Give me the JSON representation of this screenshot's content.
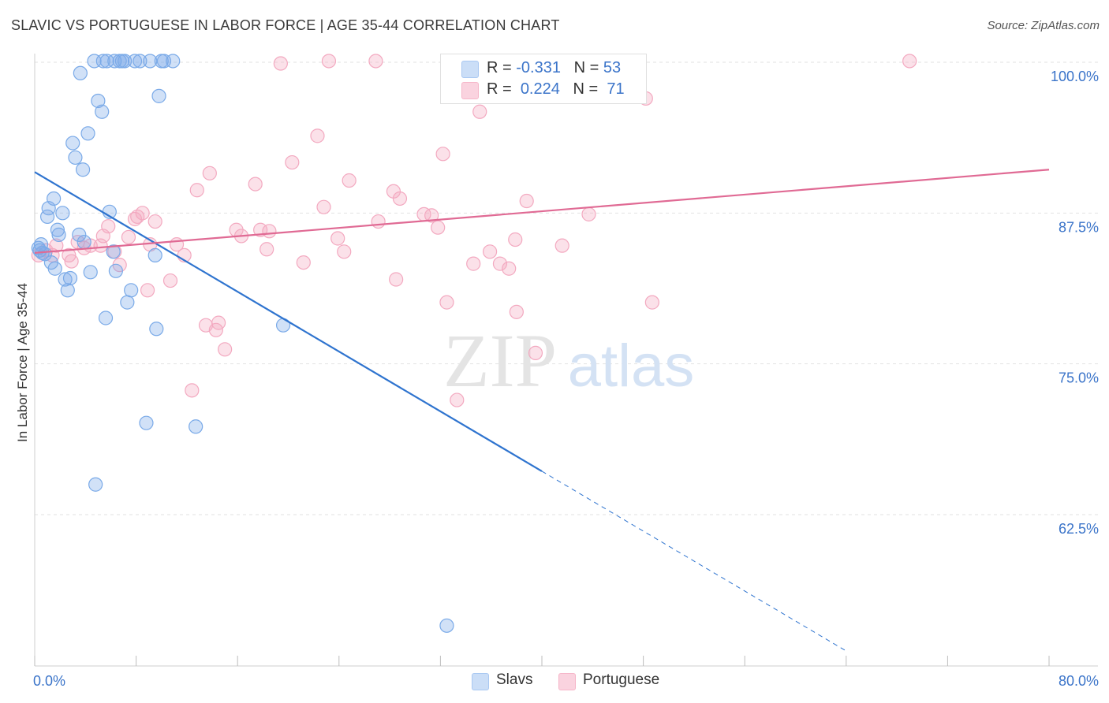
{
  "title": "SLAVIC VS PORTUGUESE IN LABOR FORCE | AGE 35-44 CORRELATION CHART",
  "source": "Source: ZipAtlas.com",
  "watermark": {
    "zip": "ZIP",
    "atlas": "atlas"
  },
  "legend": {
    "rows": [
      {
        "r_label": "R = ",
        "r_value": "-0.331",
        "n_label": "N = ",
        "n_value": "53",
        "color": "#a9c8f2"
      },
      {
        "r_label": "R = ",
        "r_value": "0.224",
        "n_label": "N = ",
        "n_value": "71",
        "color": "#f6b6c9"
      }
    ]
  },
  "bottom_legend": [
    {
      "label": "Slavs",
      "color": "#a9c8f2"
    },
    {
      "label": "Portuguese",
      "color": "#f6b6c9"
    }
  ],
  "chart_data": {
    "type": "scatter",
    "ylabel": "In Labor Force | Age 35-44",
    "x_ticks": [
      "0.0%",
      "80.0%"
    ],
    "y_ticks": [
      "100.0%",
      "87.5%",
      "75.0%",
      "62.5%"
    ],
    "xlim": [
      0,
      80
    ],
    "ylim": [
      52,
      102.5
    ],
    "grid": true,
    "series": [
      {
        "name": "Slavs",
        "color": "#7aaae8",
        "line_color": "#2f74cf",
        "trend": {
          "x0": 0,
          "y0": 90.9,
          "x1": 40,
          "y1": 66.1,
          "dash_to_x": 64,
          "dash_to_y": 51.2
        },
        "points": [
          [
            0.3,
            84.6
          ],
          [
            0.4,
            84.4
          ],
          [
            0.5,
            84.9
          ],
          [
            0.6,
            84.2
          ],
          [
            0.8,
            84.1
          ],
          [
            1.0,
            87.2
          ],
          [
            1.1,
            87.9
          ],
          [
            1.3,
            83.4
          ],
          [
            1.5,
            88.7
          ],
          [
            1.6,
            82.9
          ],
          [
            1.8,
            86.1
          ],
          [
            1.9,
            85.7
          ],
          [
            2.2,
            87.5
          ],
          [
            2.4,
            82.0
          ],
          [
            2.6,
            81.1
          ],
          [
            2.8,
            82.1
          ],
          [
            3.0,
            93.3
          ],
          [
            3.2,
            92.1
          ],
          [
            3.5,
            85.7
          ],
          [
            3.6,
            99.1
          ],
          [
            3.8,
            91.1
          ],
          [
            3.9,
            85.1
          ],
          [
            4.2,
            94.1
          ],
          [
            4.4,
            82.6
          ],
          [
            4.7,
            100.1
          ],
          [
            5.0,
            96.8
          ],
          [
            5.3,
            95.9
          ],
          [
            5.6,
            78.8
          ],
          [
            5.4,
            100.1
          ],
          [
            5.7,
            100.1
          ],
          [
            5.9,
            87.6
          ],
          [
            6.2,
            84.3
          ],
          [
            6.4,
            82.7
          ],
          [
            6.7,
            100.1
          ],
          [
            6.9,
            100.1
          ],
          [
            7.1,
            100.1
          ],
          [
            7.3,
            80.1
          ],
          [
            7.6,
            81.1
          ],
          [
            7.9,
            100.1
          ],
          [
            8.3,
            100.1
          ],
          [
            9.1,
            100.1
          ],
          [
            9.5,
            84.0
          ],
          [
            9.6,
            77.9
          ],
          [
            9.8,
            97.2
          ],
          [
            10.0,
            100.1
          ],
          [
            10.2,
            100.1
          ],
          [
            10.9,
            100.1
          ],
          [
            8.8,
            70.1
          ],
          [
            12.7,
            69.8
          ],
          [
            4.8,
            65.0
          ],
          [
            19.6,
            78.2
          ],
          [
            32.5,
            53.3
          ],
          [
            6.3,
            100.1
          ]
        ]
      },
      {
        "name": "Portuguese",
        "color": "#f3a9c0",
        "line_color": "#e06a94",
        "trend": {
          "x0": 0,
          "y0": 84.2,
          "x1": 80,
          "y1": 91.1
        },
        "points": [
          [
            0.3,
            84.0
          ],
          [
            0.9,
            84.4
          ],
          [
            1.4,
            84.0
          ],
          [
            1.7,
            84.8
          ],
          [
            2.7,
            84.0
          ],
          [
            2.9,
            83.5
          ],
          [
            3.4,
            85.1
          ],
          [
            3.9,
            84.6
          ],
          [
            4.4,
            84.8
          ],
          [
            5.2,
            84.8
          ],
          [
            5.4,
            85.6
          ],
          [
            5.8,
            86.4
          ],
          [
            6.3,
            84.3
          ],
          [
            6.7,
            83.2
          ],
          [
            7.4,
            85.5
          ],
          [
            7.9,
            87.0
          ],
          [
            8.1,
            87.2
          ],
          [
            8.5,
            87.5
          ],
          [
            8.9,
            81.1
          ],
          [
            9.1,
            84.9
          ],
          [
            9.5,
            86.8
          ],
          [
            10.7,
            81.9
          ],
          [
            11.2,
            84.9
          ],
          [
            11.8,
            84.0
          ],
          [
            12.4,
            72.8
          ],
          [
            12.8,
            89.4
          ],
          [
            13.5,
            78.2
          ],
          [
            13.8,
            90.8
          ],
          [
            14.3,
            77.8
          ],
          [
            14.5,
            78.4
          ],
          [
            15.0,
            76.2
          ],
          [
            15.9,
            86.1
          ],
          [
            16.3,
            85.6
          ],
          [
            17.4,
            89.9
          ],
          [
            17.8,
            86.1
          ],
          [
            18.3,
            84.5
          ],
          [
            18.5,
            86.0
          ],
          [
            19.4,
            99.9
          ],
          [
            20.3,
            91.7
          ],
          [
            21.2,
            83.4
          ],
          [
            22.3,
            93.9
          ],
          [
            22.8,
            88.0
          ],
          [
            23.2,
            100.1
          ],
          [
            23.9,
            85.4
          ],
          [
            24.4,
            84.3
          ],
          [
            24.8,
            90.2
          ],
          [
            26.9,
            100.1
          ],
          [
            27.1,
            86.8
          ],
          [
            28.3,
            89.3
          ],
          [
            28.5,
            82.0
          ],
          [
            28.8,
            88.7
          ],
          [
            30.7,
            87.4
          ],
          [
            31.3,
            87.3
          ],
          [
            31.8,
            86.3
          ],
          [
            32.2,
            92.4
          ],
          [
            32.5,
            80.1
          ],
          [
            33.3,
            72.0
          ],
          [
            34.6,
            83.3
          ],
          [
            35.1,
            95.9
          ],
          [
            35.9,
            84.3
          ],
          [
            36.7,
            83.3
          ],
          [
            37.4,
            82.9
          ],
          [
            37.9,
            85.3
          ],
          [
            38.0,
            79.3
          ],
          [
            38.8,
            88.5
          ],
          [
            39.5,
            75.9
          ],
          [
            41.6,
            84.8
          ],
          [
            43.7,
            87.4
          ],
          [
            48.2,
            97.0
          ],
          [
            48.7,
            80.1
          ],
          [
            69.0,
            100.1
          ]
        ]
      }
    ]
  }
}
